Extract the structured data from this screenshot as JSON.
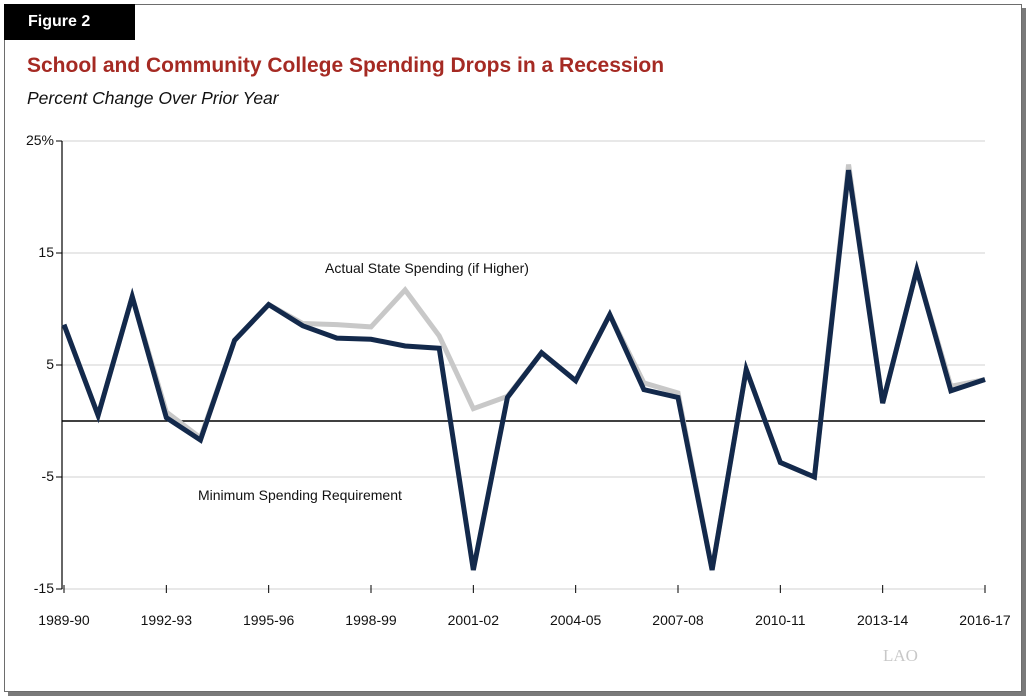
{
  "figure_label": "Figure 2",
  "logo_text": "LAO",
  "colors": {
    "title": "#a52a23",
    "minimum": "#13294b",
    "actual": "#c8c8c8"
  },
  "chart_data": {
    "type": "line",
    "title": "School and Community College Spending Drops in a Recession",
    "subtitle": "Percent Change Over Prior Year",
    "xlabel": "",
    "ylabel": "",
    "ylim": [
      -15,
      25
    ],
    "yticks": [
      25,
      15,
      5,
      -5,
      -15
    ],
    "ytick_labels": [
      "25%",
      "15",
      "5",
      "-5",
      "-15"
    ],
    "x": [
      "1989-90",
      "1990-91",
      "1991-92",
      "1992-93",
      "1993-94",
      "1994-95",
      "1995-96",
      "1996-97",
      "1997-98",
      "1998-99",
      "1999-00",
      "2000-01",
      "2001-02",
      "2002-03",
      "2003-04",
      "2004-05",
      "2005-06",
      "2006-07",
      "2007-08",
      "2008-09",
      "2009-10",
      "2010-11",
      "2011-12",
      "2012-13",
      "2013-14",
      "2014-15",
      "2015-16",
      "2016-17"
    ],
    "xtick_labels": [
      "1989-90",
      "1992-93",
      "1995-96",
      "1998-99",
      "2001-02",
      "2004-05",
      "2007-08",
      "2010-11",
      "2013-14",
      "2016-17"
    ],
    "grid": true,
    "series": [
      {
        "name": "Actual State Spending (if Higher)",
        "values": [
          8.6,
          0.5,
          11.1,
          0.8,
          -1.5,
          7.2,
          10.4,
          8.7,
          8.6,
          8.4,
          11.7,
          7.6,
          1.1,
          2.2,
          6.1,
          3.6,
          9.5,
          3.4,
          2.5,
          -13.3,
          4.6,
          -3.7,
          -5.0,
          22.9,
          1.6,
          13.5,
          3.1,
          3.7
        ]
      },
      {
        "name": "Minimum Spending Requirement",
        "values": [
          8.6,
          0.5,
          11.1,
          0.3,
          -1.7,
          7.2,
          10.4,
          8.5,
          7.4,
          7.3,
          6.7,
          6.5,
          -13.3,
          2.1,
          6.1,
          3.6,
          9.5,
          2.8,
          2.1,
          -13.3,
          4.6,
          -3.7,
          -5.0,
          22.4,
          1.6,
          13.5,
          2.7,
          3.7
        ]
      }
    ]
  }
}
